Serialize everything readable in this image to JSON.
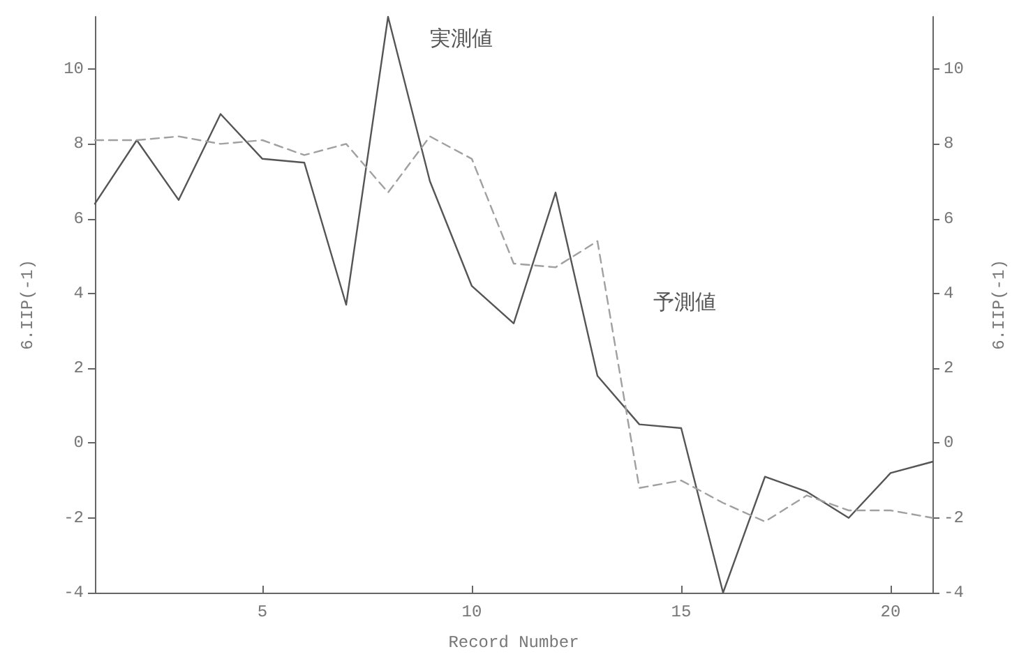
{
  "chart_data": {
    "type": "line",
    "xlabel": "Record Number",
    "ylabel": "6.IIP(-1)",
    "y2label": "6.IIP(-1)",
    "x": [
      1,
      2,
      3,
      4,
      5,
      6,
      7,
      8,
      9,
      10,
      11,
      12,
      13,
      14,
      15,
      16,
      17,
      18,
      19,
      20,
      21
    ],
    "series": [
      {
        "name": "実測値",
        "color": "#555555",
        "line_style": "solid",
        "values": [
          6.4,
          8.1,
          6.5,
          8.8,
          7.6,
          7.5,
          3.7,
          11.4,
          7.0,
          4.2,
          3.2,
          6.7,
          1.8,
          0.5,
          0.4,
          -4.0,
          -0.9,
          -1.3,
          -2.0,
          -0.8,
          -0.5
        ]
      },
      {
        "name": "予測値",
        "color": "#a0a0a0",
        "line_style": "dashed",
        "values": [
          8.1,
          8.1,
          8.2,
          8.0,
          8.1,
          7.7,
          8.0,
          6.7,
          8.2,
          7.6,
          4.8,
          4.7,
          5.4,
          -1.2,
          -1.0,
          -1.6,
          -2.1,
          -1.4,
          -1.8,
          -1.8,
          -2.0
        ]
      }
    ],
    "xlim": [
      1,
      21
    ],
    "xticks": [
      5,
      10,
      15,
      20
    ],
    "ylim": [
      -4,
      11.4
    ],
    "yticks": [
      -4,
      -2,
      0,
      2,
      4,
      6,
      8,
      10
    ],
    "y2lim": [
      -4,
      11.4
    ],
    "y2ticks": [
      -4,
      -2,
      0,
      2,
      4,
      6,
      8,
      10
    ],
    "grid": false,
    "legend": false,
    "marker": "none"
  }
}
